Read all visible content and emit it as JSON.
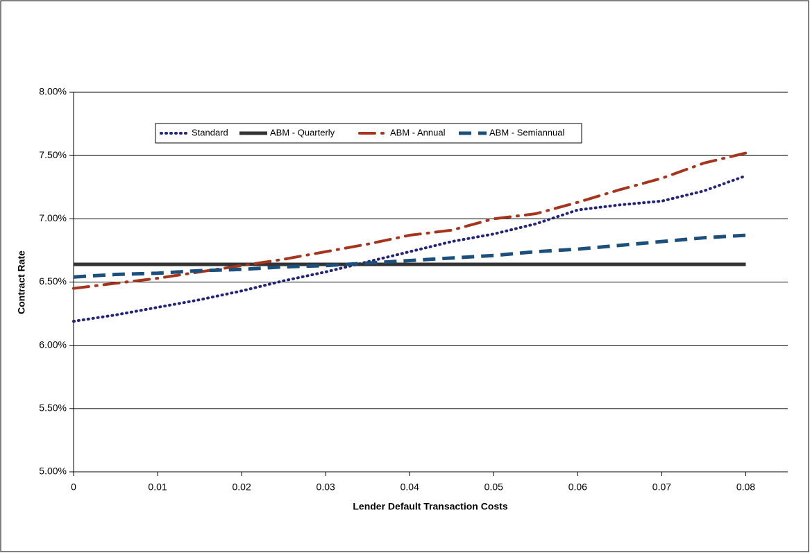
{
  "chart_data": {
    "type": "line",
    "x_label": "Lender Default Transaction Costs",
    "y_label": "Contract Rate",
    "x": [
      0,
      0.005,
      0.01,
      0.015,
      0.02,
      0.025,
      0.03,
      0.035,
      0.04,
      0.045,
      0.05,
      0.055,
      0.06,
      0.065,
      0.07,
      0.075,
      0.08
    ],
    "series": [
      {
        "name": "Standard",
        "color": "#23237a",
        "dash": "dotted",
        "values": [
          0.0619,
          0.0624,
          0.063,
          0.0636,
          0.0643,
          0.0651,
          0.0658,
          0.0666,
          0.0674,
          0.0682,
          0.0688,
          0.0696,
          0.0707,
          0.0711,
          0.0714,
          0.0722,
          0.0734
        ]
      },
      {
        "name": "ABM - Quarterly",
        "color": "#333333",
        "dash": "solid",
        "values": [
          0.0664,
          0.0664,
          0.0664,
          0.0664,
          0.0664,
          0.0664,
          0.0664,
          0.0664,
          0.0664,
          0.0664,
          0.0664,
          0.0664,
          0.0664,
          0.0664,
          0.0664,
          0.0664,
          0.0664
        ]
      },
      {
        "name": "ABM - Annual",
        "color": "#a5361d",
        "dash": "dashdot",
        "values": [
          0.0645,
          0.0649,
          0.0653,
          0.0658,
          0.0663,
          0.0668,
          0.0674,
          0.068,
          0.0687,
          0.0691,
          0.07,
          0.0704,
          0.0713,
          0.0723,
          0.0732,
          0.0744,
          0.0752
        ]
      },
      {
        "name": "ABM - Semiannual",
        "color": "#1d4f7c",
        "dash": "dashed",
        "values": [
          0.0654,
          0.0656,
          0.0657,
          0.0659,
          0.066,
          0.0662,
          0.0663,
          0.0665,
          0.0667,
          0.0669,
          0.0671,
          0.0674,
          0.0676,
          0.0679,
          0.0682,
          0.0685,
          0.0687
        ]
      }
    ],
    "xlim": [
      0,
      0.085
    ],
    "xticks": [
      0,
      0.01,
      0.02,
      0.03,
      0.04,
      0.05,
      0.06,
      0.07,
      0.08
    ],
    "ylim": [
      0.05,
      0.08
    ],
    "yticks": [
      {
        "value": 0.05,
        "label": "5.00%"
      },
      {
        "value": 0.055,
        "label": "5.50%"
      },
      {
        "value": 0.06,
        "label": "6.00%"
      },
      {
        "value": 0.065,
        "label": "6.50%"
      },
      {
        "value": 0.07,
        "label": "7.00%"
      },
      {
        "value": 0.075,
        "label": "7.50%"
      },
      {
        "value": 0.08,
        "label": "8.00%"
      }
    ],
    "grid": true
  }
}
